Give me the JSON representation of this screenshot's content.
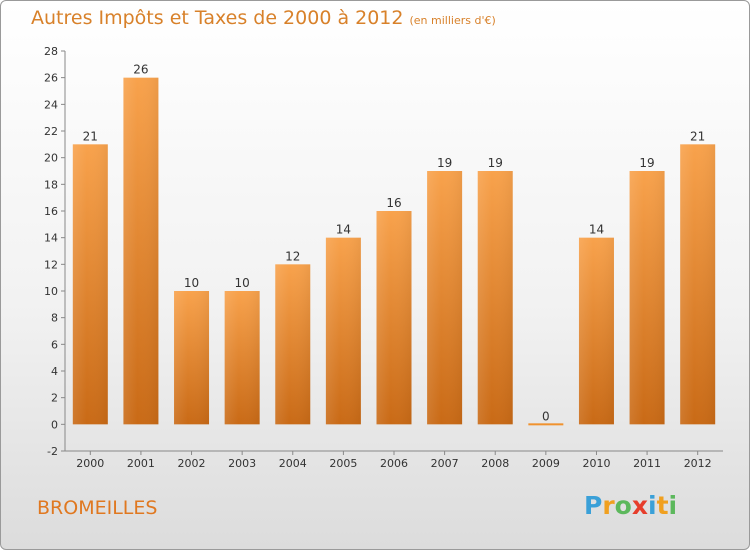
{
  "title": "Autres Impôts et Taxes de 2000 à 2012",
  "unit": "(en milliers d'€)",
  "commune": "BROMEILLES",
  "logo": {
    "letters": [
      "P",
      "r",
      "o",
      "x",
      "i",
      "t",
      "i"
    ],
    "colors": [
      "#3aa0d8",
      "#f0a020",
      "#5cb85c",
      "#e63d2b",
      "#3aa0d8",
      "#f0a020",
      "#5cb85c"
    ]
  },
  "colors": {
    "bar": "#f0922e",
    "title": "#d8812a"
  },
  "chart_data": {
    "type": "bar",
    "categories": [
      "2000",
      "2001",
      "2002",
      "2003",
      "2004",
      "2005",
      "2006",
      "2007",
      "2008",
      "2009",
      "2010",
      "2011",
      "2012"
    ],
    "values": [
      21,
      26,
      10,
      10,
      12,
      14,
      16,
      19,
      19,
      0,
      14,
      19,
      21
    ],
    "ylim": [
      -2,
      28
    ],
    "yticks": [
      -2,
      0,
      2,
      4,
      6,
      8,
      10,
      12,
      14,
      16,
      18,
      20,
      22,
      24,
      26,
      28
    ],
    "grid": false
  }
}
